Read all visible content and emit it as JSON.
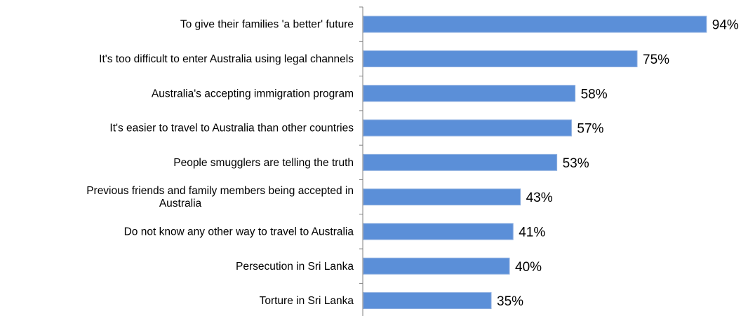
{
  "chart_data": {
    "type": "bar",
    "orientation": "horizontal",
    "categories": [
      [
        "To give their families 'a better' future"
      ],
      [
        "It's too difficult to enter Australia using legal channels"
      ],
      [
        "Australia's accepting immigration program"
      ],
      [
        "It's easier to travel to Australia than other countries"
      ],
      [
        "People smugglers are telling the truth"
      ],
      [
        "Previous friends and family members being accepted in",
        "Australia"
      ],
      [
        "Do not know any other way to travel to Australia"
      ],
      [
        "Persecution in Sri Lanka"
      ],
      [
        "Torture in Sri Lanka"
      ]
    ],
    "values": [
      94,
      75,
      58,
      57,
      53,
      43,
      41,
      40,
      35
    ],
    "value_labels": [
      "94%",
      "75%",
      "58%",
      "57%",
      "53%",
      "43%",
      "41%",
      "40%",
      "35%"
    ],
    "xlim": [
      0,
      100
    ],
    "title": "",
    "xlabel": "",
    "ylabel": "",
    "grid": false,
    "legend": "none",
    "colors": {
      "bar": "#5B8FD8",
      "bar_border": "#8CAEE0",
      "axis": "#808080",
      "text": "#000000"
    }
  }
}
